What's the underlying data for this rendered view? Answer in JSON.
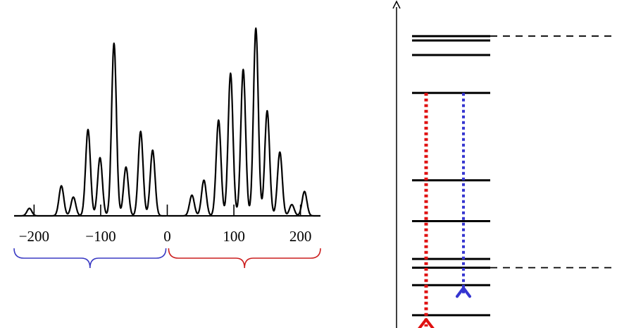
{
  "chart_data": {
    "type": "line",
    "title": "",
    "xlabel": "",
    "ylabel": "",
    "xlim": [
      -230,
      230
    ],
    "x_ticks": [
      {
        "value": -200,
        "label": "−200"
      },
      {
        "value": -100,
        "label": "−100"
      },
      {
        "value": 0,
        "label": "0"
      },
      {
        "value": 100,
        "label": "100"
      },
      {
        "value": 200,
        "label": "200"
      }
    ],
    "grid": false,
    "legend": "none",
    "peaks": [
      {
        "x": -207,
        "height": 0.04
      },
      {
        "x": -159,
        "height": 0.16
      },
      {
        "x": -141,
        "height": 0.1
      },
      {
        "x": -119,
        "height": 0.46
      },
      {
        "x": -101,
        "height": 0.31
      },
      {
        "x": -80,
        "height": 0.92
      },
      {
        "x": -62,
        "height": 0.26
      },
      {
        "x": -40,
        "height": 0.45
      },
      {
        "x": -22,
        "height": 0.35
      },
      {
        "x": 37,
        "height": 0.11
      },
      {
        "x": 55,
        "height": 0.19
      },
      {
        "x": 77,
        "height": 0.51
      },
      {
        "x": 95,
        "height": 0.76
      },
      {
        "x": 114,
        "height": 0.78
      },
      {
        "x": 133,
        "height": 1.0
      },
      {
        "x": 150,
        "height": 0.56
      },
      {
        "x": 169,
        "height": 0.34
      },
      {
        "x": 187,
        "height": 0.06
      },
      {
        "x": 206,
        "height": 0.13
      }
    ]
  },
  "brackets": [
    {
      "name": "negative-range",
      "from": -230,
      "to": -2,
      "color": "#3b3bc4"
    },
    {
      "name": "positive-range",
      "from": 2,
      "to": 230,
      "color": "#cc1f1f"
    }
  ],
  "level_diagram": {
    "levels": [
      0.985,
      0.97,
      0.92,
      0.79,
      0.49,
      0.35,
      0.22,
      0.19,
      0.13,
      0.027
    ],
    "dashed_levels": [
      0.19,
      0.985
    ],
    "transitions": [
      {
        "name": "red-transition",
        "from": 0.79,
        "to": 0.027,
        "color": "#e01010"
      },
      {
        "name": "blue-transition",
        "from": 0.79,
        "to": 0.135,
        "color": "#3535d0"
      }
    ]
  }
}
